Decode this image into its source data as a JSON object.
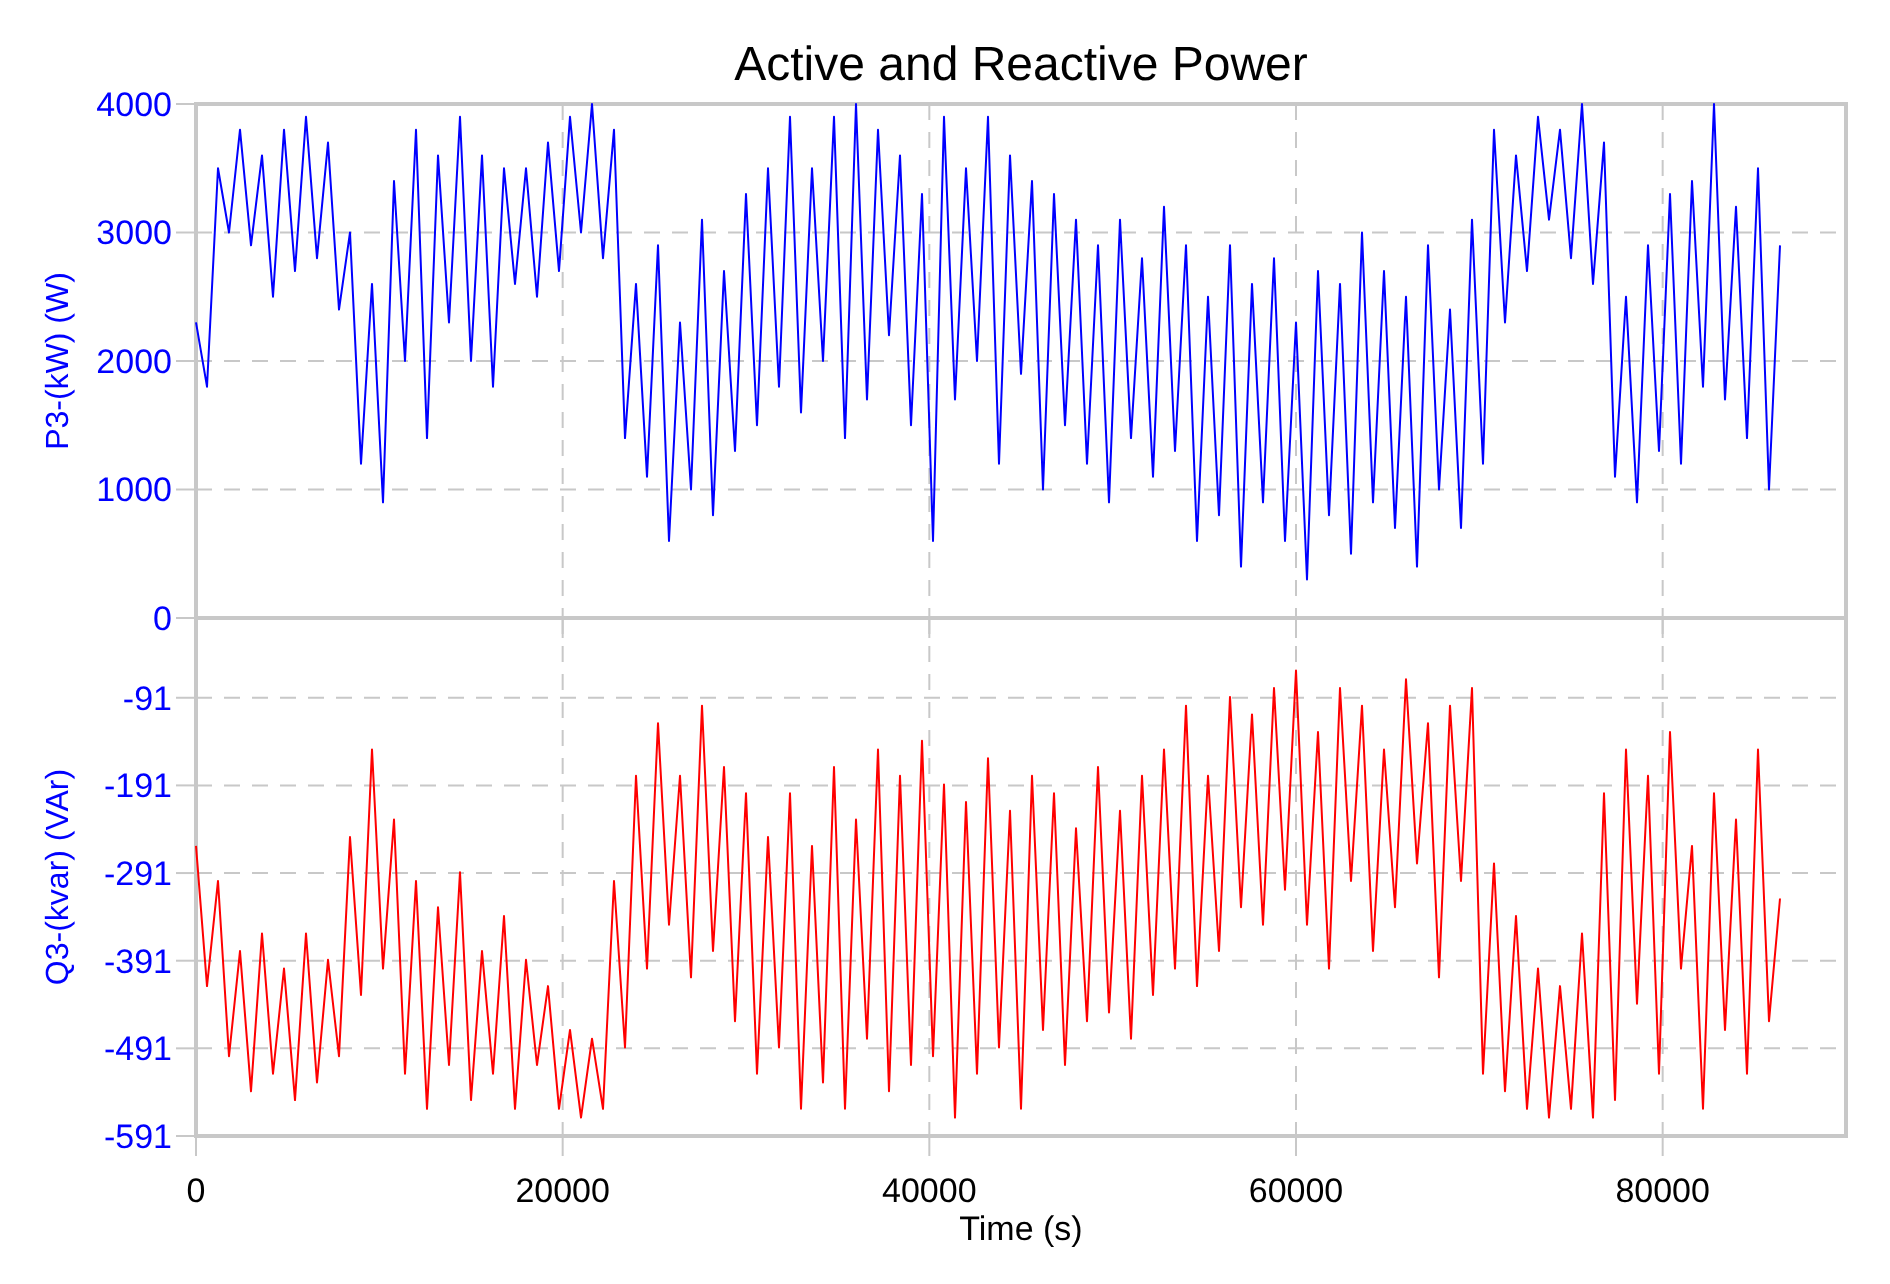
{
  "chart_data": [
    {
      "type": "line",
      "title": "Active and Reactive Power",
      "ylabel": "P3-(kW)  (W)",
      "xlim": [
        0,
        90000
      ],
      "xticks": [
        0,
        20000,
        40000,
        60000,
        80000
      ],
      "ylim": [
        0,
        4000
      ],
      "yticks": [
        0,
        1000,
        2000,
        3000,
        4000
      ],
      "grid": true,
      "tick_labels": "y",
      "x": [
        0,
        600,
        1200,
        1800,
        2400,
        3000,
        3600,
        4200,
        4800,
        5400,
        6000,
        6600,
        7200,
        7800,
        8400,
        9000,
        9600,
        10200,
        10800,
        11400,
        12000,
        12600,
        13200,
        13800,
        14400,
        15000,
        15600,
        16200,
        16800,
        17400,
        18000,
        18600,
        19200,
        19800,
        20400,
        21000,
        21600,
        22200,
        22800,
        23400,
        24000,
        24600,
        25200,
        25800,
        26400,
        27000,
        27600,
        28200,
        28800,
        29400,
        30000,
        30600,
        31200,
        31800,
        32400,
        33000,
        33600,
        34200,
        34800,
        35400,
        36000,
        36600,
        37200,
        37800,
        38400,
        39000,
        39600,
        40200,
        40800,
        41400,
        42000,
        42600,
        43200,
        43800,
        44400,
        45000,
        45600,
        46200,
        46800,
        47400,
        48000,
        48600,
        49200,
        49800,
        50400,
        51000,
        51600,
        52200,
        52800,
        53400,
        54000,
        54600,
        55200,
        55800,
        56400,
        57000,
        57600,
        58200,
        58800,
        59400,
        60000,
        60600,
        61200,
        61800,
        62400,
        63000,
        63600,
        64200,
        64800,
        65400,
        66000,
        66600,
        67200,
        67800,
        68400,
        69000,
        69600,
        70200,
        70800,
        71400,
        72000,
        72600,
        73200,
        73800,
        74400,
        75000,
        75600,
        76200,
        76800,
        77400,
        78000,
        78600,
        79200,
        79800,
        80400,
        81000,
        81600,
        82200,
        82800,
        83400,
        84000,
        84600,
        85200,
        85800,
        86400
      ],
      "series": [
        {
          "color": "#0000ff",
          "values": [
            2300,
            1800,
            3500,
            3000,
            3800,
            2900,
            3600,
            2500,
            3800,
            2700,
            3900,
            2800,
            3700,
            2400,
            3000,
            1200,
            2600,
            900,
            3400,
            2000,
            3800,
            1400,
            3600,
            2300,
            3900,
            2000,
            3600,
            1800,
            3500,
            2600,
            3500,
            2500,
            3700,
            2700,
            3900,
            3000,
            4000,
            2800,
            3800,
            1400,
            2600,
            1100,
            2900,
            600,
            2300,
            1000,
            3100,
            800,
            2700,
            1300,
            3300,
            1500,
            3500,
            1800,
            3900,
            1600,
            3500,
            2000,
            3900,
            1400,
            4000,
            1700,
            3800,
            2200,
            3600,
            1500,
            3300,
            600,
            3900,
            1700,
            3500,
            2000,
            3900,
            1200,
            3600,
            1900,
            3400,
            1000,
            3300,
            1500,
            3100,
            1200,
            2900,
            900,
            3100,
            1400,
            2800,
            1100,
            3200,
            1300,
            2900,
            600,
            2500,
            800,
            2900,
            400,
            2600,
            900,
            2800,
            600,
            2300,
            300,
            2700,
            800,
            2600,
            500,
            3000,
            900,
            2700,
            700,
            2500,
            400,
            2900,
            1000,
            2400,
            700,
            3100,
            1200,
            3800,
            2300,
            3600,
            2700,
            3900,
            3100,
            3800,
            2800,
            4000,
            2600,
            3700,
            1100,
            2500,
            900,
            2900,
            1300,
            3300,
            1200,
            3400,
            1800,
            4000,
            1700,
            3200,
            1400,
            3500,
            1000,
            2900
          ]
        }
      ]
    },
    {
      "type": "line",
      "ylabel": "Q3-(kvar)  (VAr)",
      "xlabel": "Time (s)",
      "xlim": [
        0,
        90000
      ],
      "xticks": [
        0,
        20000,
        40000,
        60000,
        80000
      ],
      "ylim": [
        -591,
        0
      ],
      "yticks": [
        -91,
        -191,
        -291,
        -391,
        -491,
        -591
      ],
      "grid": true,
      "x": [
        0,
        600,
        1200,
        1800,
        2400,
        3000,
        3600,
        4200,
        4800,
        5400,
        6000,
        6600,
        7200,
        7800,
        8400,
        9000,
        9600,
        10200,
        10800,
        11400,
        12000,
        12600,
        13200,
        13800,
        14400,
        15000,
        15600,
        16200,
        16800,
        17400,
        18000,
        18600,
        19200,
        19800,
        20400,
        21000,
        21600,
        22200,
        22800,
        23400,
        24000,
        24600,
        25200,
        25800,
        26400,
        27000,
        27600,
        28200,
        28800,
        29400,
        30000,
        30600,
        31200,
        31800,
        32400,
        33000,
        33600,
        34200,
        34800,
        35400,
        36000,
        36600,
        37200,
        37800,
        38400,
        39000,
        39600,
        40200,
        40800,
        41400,
        42000,
        42600,
        43200,
        43800,
        44400,
        45000,
        45600,
        46200,
        46800,
        47400,
        48000,
        48600,
        49200,
        49800,
        50400,
        51000,
        51600,
        52200,
        52800,
        53400,
        54000,
        54600,
        55200,
        55800,
        56400,
        57000,
        57600,
        58200,
        58800,
        59400,
        60000,
        60600,
        61200,
        61800,
        62400,
        63000,
        63600,
        64200,
        64800,
        65400,
        66000,
        66600,
        67200,
        67800,
        68400,
        69000,
        69600,
        70200,
        70800,
        71400,
        72000,
        72600,
        73200,
        73800,
        74400,
        75000,
        75600,
        76200,
        76800,
        77400,
        78000,
        78600,
        79200,
        79800,
        80400,
        81000,
        81600,
        82200,
        82800,
        83400,
        84000,
        84600,
        85200,
        85800,
        86400
      ],
      "series": [
        {
          "color": "#ff0000",
          "values": [
            -260,
            -420,
            -300,
            -500,
            -380,
            -540,
            -360,
            -520,
            -400,
            -550,
            -360,
            -530,
            -390,
            -500,
            -250,
            -430,
            -150,
            -400,
            -230,
            -520,
            -300,
            -560,
            -330,
            -510,
            -290,
            -550,
            -380,
            -520,
            -340,
            -560,
            -390,
            -510,
            -420,
            -560,
            -470,
            -570,
            -480,
            -560,
            -300,
            -490,
            -180,
            -400,
            -120,
            -350,
            -180,
            -410,
            -100,
            -380,
            -170,
            -460,
            -200,
            -520,
            -250,
            -490,
            -200,
            -560,
            -260,
            -530,
            -170,
            -560,
            -230,
            -480,
            -150,
            -540,
            -180,
            -510,
            -140,
            -500,
            -190,
            -570,
            -210,
            -520,
            -160,
            -490,
            -220,
            -560,
            -180,
            -470,
            -200,
            -510,
            -240,
            -460,
            -170,
            -450,
            -220,
            -480,
            -180,
            -430,
            -150,
            -400,
            -100,
            -420,
            -180,
            -380,
            -90,
            -330,
            -110,
            -350,
            -80,
            -310,
            -60,
            -350,
            -130,
            -400,
            -80,
            -300,
            -100,
            -380,
            -150,
            -330,
            -70,
            -280,
            -120,
            -410,
            -100,
            -300,
            -80,
            -520,
            -280,
            -540,
            -340,
            -560,
            -400,
            -570,
            -420,
            -560,
            -360,
            -570,
            -200,
            -550,
            -150,
            -440,
            -180,
            -520,
            -130,
            -400,
            -260,
            -560,
            -200,
            -470,
            -230,
            -520,
            -150,
            -460,
            -320
          ]
        }
      ]
    }
  ]
}
